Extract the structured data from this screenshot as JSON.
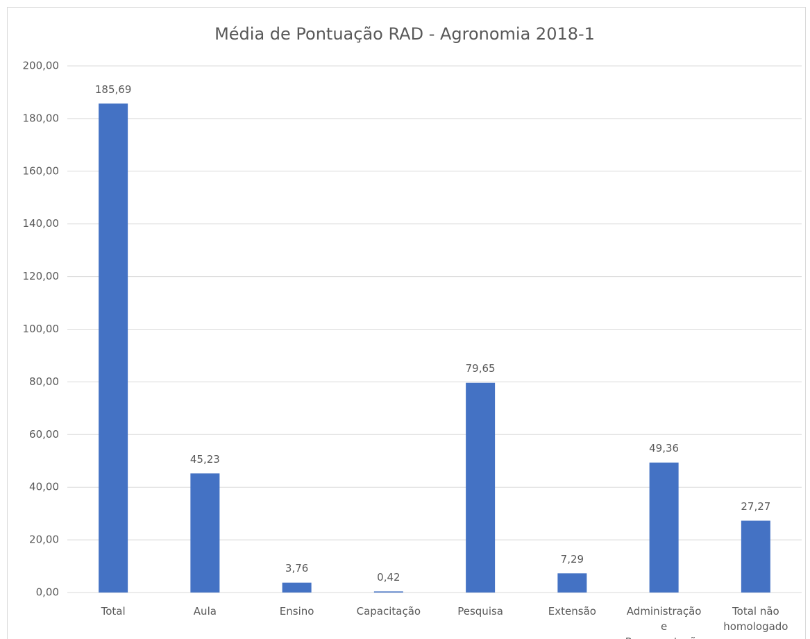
{
  "chart_data": {
    "type": "bar",
    "title": "Média de Pontuação RAD - Agronomia 2018-1",
    "categories": [
      "Total",
      "Aula",
      "Ensino",
      "Capacitação",
      "Pesquisa",
      "Extensão",
      "Administração e Representação",
      "Total não homologado"
    ],
    "values": [
      185.69,
      45.23,
      3.76,
      0.42,
      79.65,
      7.29,
      49.36,
      27.27
    ],
    "value_labels": [
      "185,69",
      "45,23",
      "3,76",
      "0,42",
      "79,65",
      "7,29",
      "49,36",
      "27,27"
    ],
    "color": "#4472c4",
    "ylim": [
      0,
      200
    ],
    "yticks": [
      {
        "value": 0,
        "label": "0,00"
      },
      {
        "value": 20,
        "label": "20,00"
      },
      {
        "value": 40,
        "label": "40,00"
      },
      {
        "value": 60,
        "label": "60,00"
      },
      {
        "value": 80,
        "label": "80,00"
      },
      {
        "value": 100,
        "label": "100,00"
      },
      {
        "value": 120,
        "label": "120,00"
      },
      {
        "value": 140,
        "label": "140,00"
      },
      {
        "value": 160,
        "label": "160,00"
      },
      {
        "value": 180,
        "label": "180,00"
      },
      {
        "value": 200,
        "label": "200,00"
      }
    ],
    "grid": true
  }
}
